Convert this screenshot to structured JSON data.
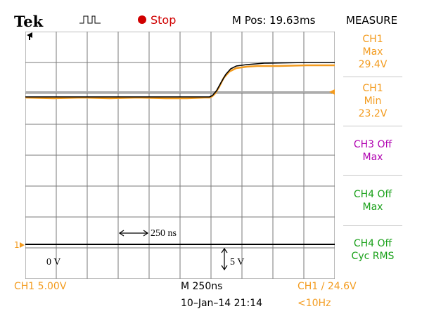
{
  "header": {
    "brand": "Tek",
    "status": "Stop",
    "m_pos": "M Pos: 19.63ms",
    "panel_title": "MEASURE"
  },
  "measurements": [
    {
      "line1": "CH1",
      "line2": "Max",
      "line3": "29.4V",
      "color": "#f39b1e"
    },
    {
      "line1": "CH1",
      "line2": "Min",
      "line3": "23.2V",
      "color": "#f39b1e"
    },
    {
      "line1": "CH3 Off",
      "line2": "Max",
      "line3": "",
      "color": "#b000b0"
    },
    {
      "line1": "CH4 Off",
      "line2": "Max",
      "line3": "",
      "color": "#19a019"
    },
    {
      "line1": "CH4 Off",
      "line2": "Cyc RMS",
      "line3": "",
      "color": "#19a019"
    }
  ],
  "annotations": {
    "time_span": "250 ns",
    "voltage_span": "5 V",
    "zero_level": "0 V"
  },
  "footer": {
    "ch1_scale": "CH1  5.00V",
    "timebase": "M 250ns",
    "trigger": "CH1 ∕ 24.6V",
    "datetime": "10–Jan–14 21:14",
    "freq": "<10Hz"
  },
  "markers": {
    "ch1_ground": "1"
  },
  "colors": {
    "ch1": "#f39b1e",
    "grid": "#7a7a7a",
    "ch3": "#b000b0",
    "ch4": "#19a019",
    "stop": "#d00000"
  }
}
